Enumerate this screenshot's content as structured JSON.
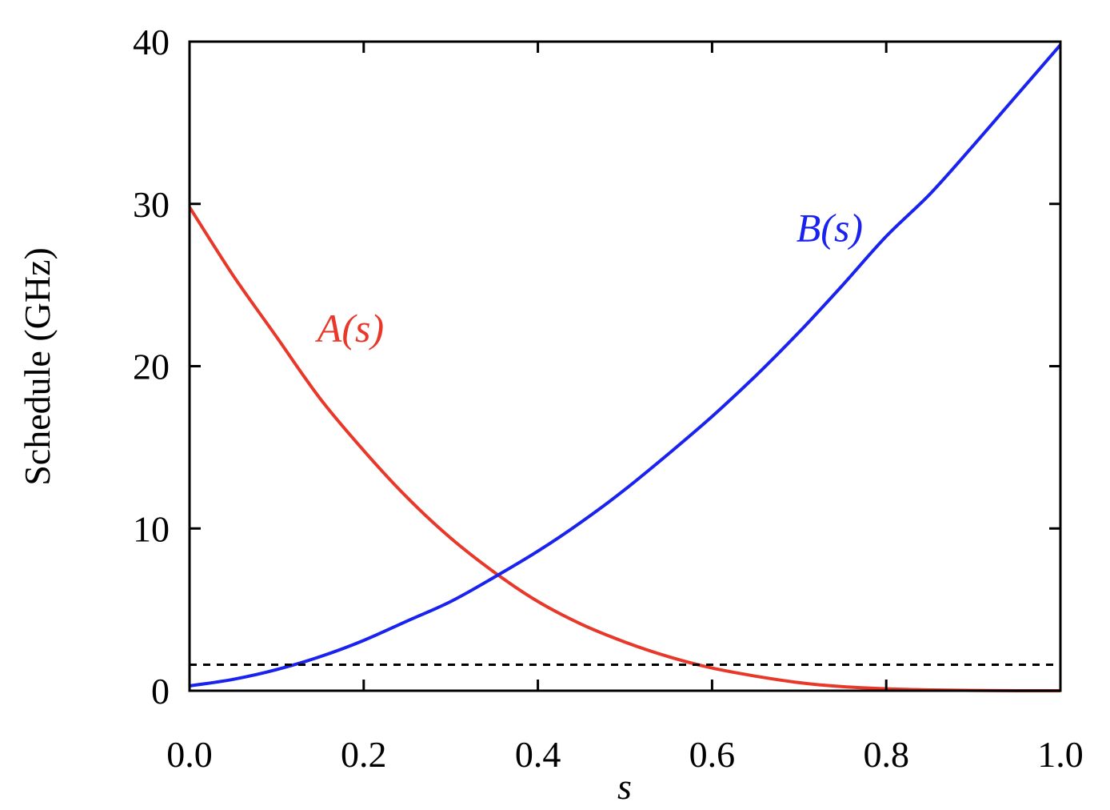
{
  "chart_data": {
    "type": "line",
    "xlabel": "s",
    "ylabel": "Schedule (GHz)",
    "xlim": [
      0.0,
      1.0
    ],
    "ylim": [
      0,
      40
    ],
    "xticks": [
      "0.0",
      "0.2",
      "0.4",
      "0.6",
      "0.8",
      "1.0"
    ],
    "yticks": [
      "0",
      "10",
      "20",
      "30",
      "40"
    ],
    "grid": false,
    "series": [
      {
        "name": "A(s)",
        "color": "#e8382a",
        "x": [
          0.0,
          0.05,
          0.1,
          0.15,
          0.2,
          0.25,
          0.3,
          0.35,
          0.4,
          0.45,
          0.5,
          0.55,
          0.6,
          0.65,
          0.7,
          0.75,
          0.8,
          0.85,
          0.9,
          0.95,
          1.0
        ],
        "y": [
          29.8,
          25.6,
          21.8,
          18.0,
          14.8,
          11.9,
          9.4,
          7.3,
          5.5,
          4.1,
          3.0,
          2.1,
          1.4,
          0.9,
          0.5,
          0.25,
          0.12,
          0.05,
          0.02,
          0.0,
          0.0
        ]
      },
      {
        "name": "B(s)",
        "color": "#1a22f0",
        "x": [
          0.0,
          0.05,
          0.1,
          0.15,
          0.2,
          0.25,
          0.3,
          0.35,
          0.4,
          0.45,
          0.5,
          0.55,
          0.6,
          0.65,
          0.7,
          0.75,
          0.8,
          0.85,
          0.9,
          0.95,
          1.0
        ],
        "y": [
          0.3,
          0.7,
          1.3,
          2.1,
          3.1,
          4.3,
          5.5,
          7.0,
          8.6,
          10.4,
          12.4,
          14.6,
          16.9,
          19.4,
          22.1,
          25.0,
          28.0,
          30.6,
          33.6,
          36.7,
          39.8
        ]
      }
    ],
    "annotations": [
      {
        "text": "A(s)",
        "x": 0.185,
        "y": 21.5,
        "color": "#e8382a"
      },
      {
        "text": "B(s)",
        "x": 0.735,
        "y": 27.7,
        "color": "#1a22f0"
      }
    ],
    "reference_line": {
      "y": 1.6,
      "style": "dashed",
      "color": "#000000"
    }
  }
}
